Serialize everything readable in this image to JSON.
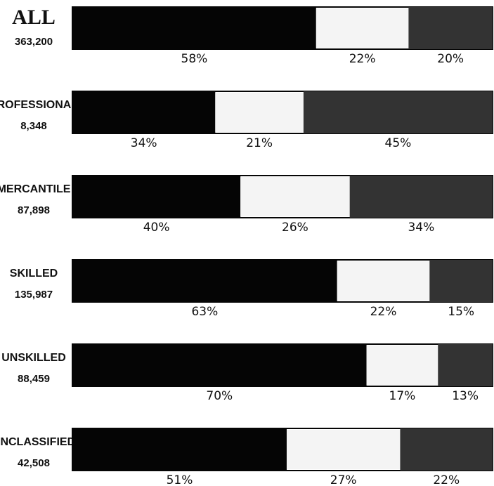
{
  "chart_data": {
    "type": "bar",
    "orientation": "horizontal-stacked-100",
    "categories": [
      {
        "name": "ALL",
        "count": "363,200",
        "values": [
          58,
          22,
          20
        ]
      },
      {
        "name": "PROFESSIONAL",
        "count": "8,348",
        "values": [
          34,
          21,
          45
        ]
      },
      {
        "name": "MERCANTILE",
        "count": "87,898",
        "values": [
          40,
          26,
          34
        ]
      },
      {
        "name": "SKILLED",
        "count": "135,987",
        "values": [
          63,
          22,
          15
        ]
      },
      {
        "name": "UNSKILLED",
        "count": "88,459",
        "values": [
          70,
          17,
          13
        ]
      },
      {
        "name": "UNCLASSIFIED",
        "count": "42,508",
        "values": [
          51,
          27,
          22
        ]
      }
    ],
    "segment_colors": [
      "#050505",
      "#f4f4f4",
      "#333333"
    ],
    "value_suffix": "%",
    "legend": "none"
  }
}
